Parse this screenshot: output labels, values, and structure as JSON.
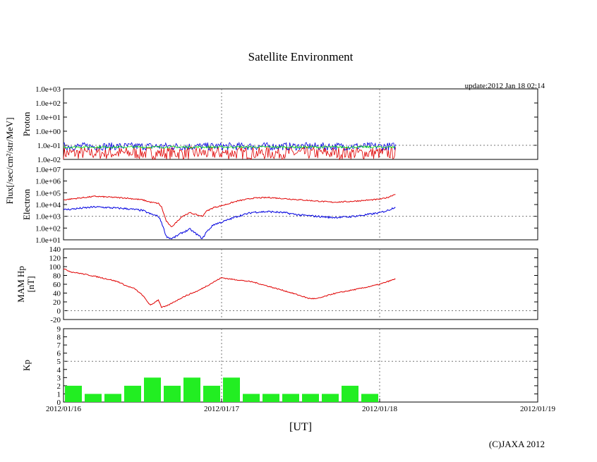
{
  "title": "Satellite Environment",
  "update": "update:2012 Jan 18 02:14",
  "copyright": "(C)JAXA 2012",
  "x_axis": {
    "label": "[UT]",
    "range_days": [
      0,
      3
    ],
    "tick_labels": [
      "2012/01/16",
      "2012/01/17",
      "2012/01/18",
      "2012/01/19"
    ]
  },
  "shared_ylabel": "Flux[/sec/cm²/str/MeV]",
  "colors": {
    "red": "#e00000",
    "blue": "#0000e0",
    "green": "#00e000",
    "bar": "#22ee22",
    "grid": "#777777"
  },
  "chart_data": [
    {
      "type": "line",
      "panel": "proton",
      "ylabel": "Proton",
      "yscale": "log",
      "ylim": [
        0.01,
        1000
      ],
      "tick_labels": [
        "1.0e-02",
        "1.0e-01",
        "1.0e+00",
        "1.0e+01",
        "1.0e+02",
        "1.0e+03"
      ],
      "series": [
        {
          "name": "red",
          "color": "#e00000",
          "x": [
            0,
            2.1
          ],
          "y_log10_band": [
            -2.0,
            -1.1
          ]
        },
        {
          "name": "blue",
          "color": "#0000e0",
          "x": [
            0,
            2.1
          ],
          "y_log10_band": [
            -1.35,
            -0.8
          ]
        },
        {
          "name": "green",
          "color": "#00e000",
          "x": [
            0,
            2.1
          ],
          "y_log10_band": [
            -1.2,
            -1.05
          ]
        }
      ]
    },
    {
      "type": "line",
      "panel": "electron",
      "ylabel": "Electron",
      "yscale": "log",
      "ylim": [
        10,
        10000000
      ],
      "tick_labels": [
        "1.0e+01",
        "1.0e+02",
        "1.0e+03",
        "1.0e+04",
        "1.0e+05",
        "1.0e+06",
        "1.0e+07"
      ],
      "series": [
        {
          "name": "red",
          "color": "#e00000",
          "x": [
            0,
            0.2,
            0.4,
            0.5,
            0.55,
            0.6,
            0.62,
            0.65,
            0.68,
            0.7,
            0.75,
            0.8,
            0.85,
            0.88,
            0.9,
            0.95,
            1.0,
            1.1,
            1.2,
            1.3,
            1.4,
            1.5,
            1.6,
            1.7,
            1.8,
            1.9,
            2.0,
            2.05,
            2.1
          ],
          "log10y": [
            4.4,
            4.7,
            4.55,
            4.4,
            4.2,
            4.1,
            3.8,
            2.6,
            2.1,
            2.3,
            3.0,
            3.3,
            3.1,
            3.0,
            3.4,
            3.75,
            3.9,
            4.3,
            4.55,
            4.6,
            4.5,
            4.4,
            4.3,
            4.2,
            4.25,
            4.35,
            4.45,
            4.6,
            4.9
          ]
        },
        {
          "name": "blue",
          "color": "#0000e0",
          "x": [
            0,
            0.2,
            0.4,
            0.5,
            0.55,
            0.6,
            0.62,
            0.65,
            0.68,
            0.7,
            0.75,
            0.8,
            0.85,
            0.88,
            0.9,
            0.95,
            1.0,
            1.1,
            1.2,
            1.3,
            1.4,
            1.5,
            1.6,
            1.7,
            1.8,
            1.9,
            2.0,
            2.05,
            2.1
          ],
          "log10y": [
            3.55,
            3.8,
            3.65,
            3.5,
            3.2,
            3.0,
            2.5,
            1.3,
            1.1,
            1.2,
            1.6,
            1.9,
            1.4,
            1.1,
            1.6,
            2.3,
            2.5,
            3.0,
            3.35,
            3.4,
            3.3,
            3.1,
            3.0,
            2.9,
            2.95,
            3.1,
            3.3,
            3.5,
            3.8
          ]
        }
      ]
    },
    {
      "type": "line",
      "panel": "mam_hp",
      "ylabel": "MAM Hp\n[nT]",
      "ylim": [
        -20,
        140
      ],
      "tick_labels": [
        "-20",
        "0",
        "20",
        "40",
        "60",
        "80",
        "100",
        "120",
        "140"
      ],
      "series": [
        {
          "name": "Hp",
          "color": "#e00000",
          "x": [
            0,
            0.05,
            0.1,
            0.2,
            0.3,
            0.35,
            0.4,
            0.45,
            0.5,
            0.55,
            0.6,
            0.62,
            0.65,
            0.7,
            0.75,
            0.8,
            0.85,
            0.9,
            0.95,
            1.0,
            1.05,
            1.1,
            1.2,
            1.3,
            1.4,
            1.5,
            1.55,
            1.6,
            1.65,
            1.7,
            1.8,
            1.9,
            2.0,
            2.1
          ],
          "y": [
            95,
            88,
            85,
            78,
            70,
            65,
            56,
            50,
            35,
            12,
            25,
            8,
            10,
            20,
            30,
            38,
            45,
            55,
            65,
            75,
            72,
            70,
            65,
            55,
            45,
            34,
            28,
            27,
            32,
            38,
            45,
            52,
            60,
            72
          ]
        }
      ]
    },
    {
      "type": "bar",
      "panel": "kp",
      "ylabel": "Kp",
      "ylim": [
        0,
        9
      ],
      "tick_labels": [
        "0",
        "1",
        "2",
        "3",
        "4",
        "5",
        "6",
        "7",
        "8",
        "9"
      ],
      "bin_hours": 3,
      "values": [
        2,
        1,
        1,
        2,
        3,
        2,
        3,
        2,
        3,
        1,
        1,
        1,
        1,
        1,
        2,
        1
      ]
    }
  ]
}
